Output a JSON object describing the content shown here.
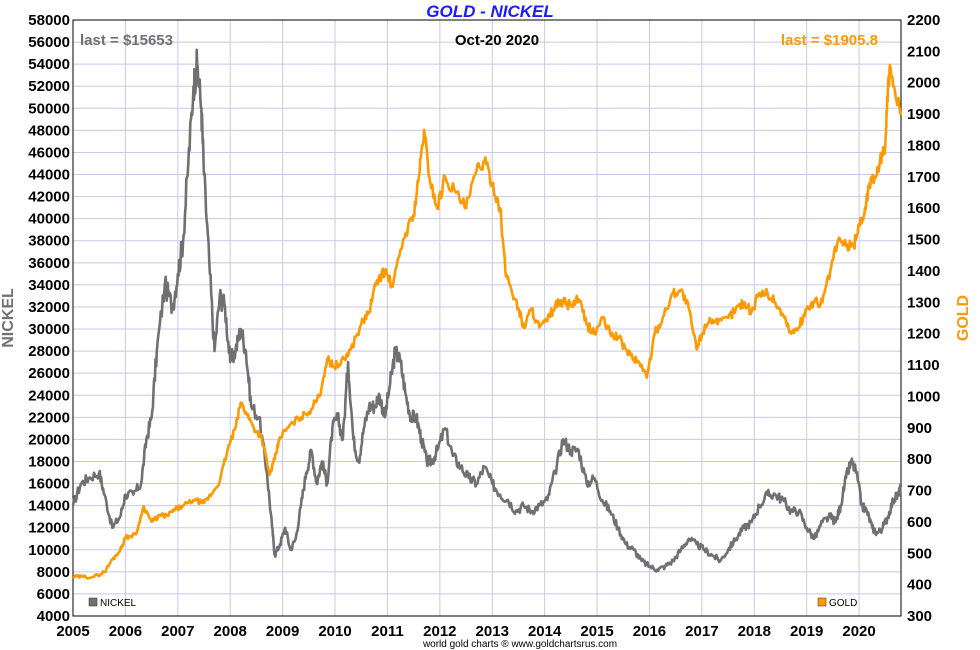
{
  "chart_data": {
    "type": "line",
    "title": "GOLD - NICKEL",
    "date_label": "Oct-20  2020",
    "footer": "world gold charts ® www.goldchartsrus.com",
    "left_axis": {
      "label": "NICKEL",
      "ylim": [
        4000,
        58000
      ],
      "ticks": [
        "4000",
        "6000",
        "8000",
        "10000",
        "12000",
        "14000",
        "16000",
        "18000",
        "20000",
        "22000",
        "24000",
        "26000",
        "28000",
        "30000",
        "32000",
        "34000",
        "36000",
        "38000",
        "40000",
        "42000",
        "44000",
        "46000",
        "48000",
        "50000",
        "52000",
        "54000",
        "56000",
        "58000"
      ]
    },
    "right_axis": {
      "label": "GOLD",
      "ylim": [
        300,
        2200
      ],
      "ticks": [
        "300",
        "400",
        "500",
        "600",
        "700",
        "800",
        "900",
        "1000",
        "1100",
        "1200",
        "1300",
        "1400",
        "1500",
        "1600",
        "1700",
        "1800",
        "1900",
        "2000",
        "2100",
        "2200"
      ]
    },
    "x_axis": {
      "xlim": [
        2005,
        2020.8
      ],
      "ticks": [
        "2005",
        "2006",
        "2007",
        "2008",
        "2009",
        "2010",
        "2011",
        "2012",
        "2013",
        "2014",
        "2015",
        "2016",
        "2017",
        "2018",
        "2019",
        "2020"
      ]
    },
    "grid": true,
    "series": [
      {
        "name": "NICKEL",
        "axis": "left",
        "color": "#707070",
        "last_label": "last = $15653",
        "x": [
          2005.0,
          2005.15,
          2005.3,
          2005.5,
          2005.6,
          2005.75,
          2005.9,
          2006.0,
          2006.15,
          2006.3,
          2006.4,
          2006.5,
          2006.6,
          2006.75,
          2006.9,
          2007.0,
          2007.1,
          2007.2,
          2007.3,
          2007.37,
          2007.45,
          2007.5,
          2007.6,
          2007.7,
          2007.8,
          2007.9,
          2008.0,
          2008.1,
          2008.2,
          2008.3,
          2008.4,
          2008.55,
          2008.7,
          2008.8,
          2008.85,
          2008.95,
          2009.05,
          2009.15,
          2009.25,
          2009.35,
          2009.45,
          2009.55,
          2009.65,
          2009.75,
          2009.85,
          2009.95,
          2010.05,
          2010.15,
          2010.25,
          2010.35,
          2010.45,
          2010.55,
          2010.65,
          2010.75,
          2010.85,
          2010.95,
          2011.05,
          2011.15,
          2011.25,
          2011.35,
          2011.45,
          2011.55,
          2011.65,
          2011.75,
          2011.85,
          2011.95,
          2012.1,
          2012.25,
          2012.4,
          2012.55,
          2012.7,
          2012.85,
          2013.0,
          2013.15,
          2013.3,
          2013.45,
          2013.6,
          2013.75,
          2013.9,
          2014.05,
          2014.2,
          2014.35,
          2014.5,
          2014.65,
          2014.8,
          2014.95,
          2015.1,
          2015.25,
          2015.4,
          2015.55,
          2015.7,
          2015.85,
          2016.0,
          2016.15,
          2016.3,
          2016.45,
          2016.6,
          2016.75,
          2016.9,
          2017.05,
          2017.2,
          2017.35,
          2017.5,
          2017.65,
          2017.8,
          2017.95,
          2018.1,
          2018.25,
          2018.4,
          2018.55,
          2018.7,
          2018.85,
          2019.0,
          2019.15,
          2019.3,
          2019.45,
          2019.55,
          2019.65,
          2019.75,
          2019.85,
          2019.95,
          2020.05,
          2020.15,
          2020.25,
          2020.35,
          2020.45,
          2020.55,
          2020.65,
          2020.75,
          2020.8
        ],
        "values": [
          14000,
          16000,
          16500,
          17000,
          15000,
          12000,
          13000,
          15000,
          15000,
          16000,
          20000,
          22000,
          28000,
          34000,
          32000,
          35000,
          38000,
          45000,
          52000,
          54000,
          50000,
          44000,
          36000,
          28000,
          33000,
          32000,
          27000,
          28000,
          30000,
          28000,
          23000,
          22000,
          17000,
          12000,
          9500,
          10500,
          12000,
          10000,
          11000,
          14000,
          17000,
          19000,
          16000,
          18000,
          16000,
          21000,
          22000,
          20000,
          27000,
          20000,
          18000,
          21000,
          23000,
          23000,
          24000,
          22000,
          25000,
          28000,
          27000,
          24000,
          22000,
          22000,
          20000,
          18000,
          18000,
          19000,
          21000,
          18500,
          17500,
          16500,
          16000,
          17500,
          16000,
          15000,
          14500,
          13500,
          14000,
          13500,
          14000,
          14500,
          17000,
          20000,
          19000,
          19000,
          16000,
          16500,
          14500,
          13500,
          12000,
          10500,
          10000,
          9000,
          8500,
          8200,
          8500,
          9000,
          10000,
          11000,
          10500,
          10000,
          9500,
          9000,
          10000,
          11000,
          12000,
          12500,
          14000,
          15000,
          15000,
          14500,
          13500,
          13500,
          12000,
          11000,
          12500,
          13000,
          12500,
          14000,
          16500,
          18000,
          17000,
          14000,
          13500,
          12000,
          11500,
          12000,
          13000,
          14500,
          15000,
          15653
        ]
      },
      {
        "name": "GOLD",
        "axis": "right",
        "color": "#ff9900",
        "last_label": "last = $1905.8",
        "x": [
          2005.0,
          2005.2,
          2005.4,
          2005.6,
          2005.75,
          2005.9,
          2006.0,
          2006.2,
          2006.35,
          2006.5,
          2006.65,
          2006.8,
          2006.95,
          2007.1,
          2007.3,
          2007.5,
          2007.65,
          2007.8,
          2007.95,
          2008.1,
          2008.2,
          2008.3,
          2008.45,
          2008.6,
          2008.75,
          2008.85,
          2008.95,
          2009.1,
          2009.3,
          2009.5,
          2009.7,
          2009.85,
          2009.95,
          2010.1,
          2010.3,
          2010.5,
          2010.65,
          2010.8,
          2010.95,
          2011.1,
          2011.3,
          2011.5,
          2011.6,
          2011.7,
          2011.8,
          2011.95,
          2012.1,
          2012.3,
          2012.5,
          2012.7,
          2012.85,
          2013.0,
          2013.15,
          2013.25,
          2013.35,
          2013.5,
          2013.6,
          2013.75,
          2013.9,
          2014.05,
          2014.2,
          2014.35,
          2014.5,
          2014.65,
          2014.8,
          2014.95,
          2015.1,
          2015.25,
          2015.4,
          2015.55,
          2015.7,
          2015.85,
          2015.95,
          2016.1,
          2016.25,
          2016.45,
          2016.6,
          2016.75,
          2016.9,
          2017.0,
          2017.15,
          2017.3,
          2017.5,
          2017.65,
          2017.8,
          2017.95,
          2018.1,
          2018.25,
          2018.4,
          2018.55,
          2018.7,
          2018.85,
          2019.0,
          2019.15,
          2019.3,
          2019.45,
          2019.6,
          2019.75,
          2019.9,
          2020.0,
          2020.1,
          2020.2,
          2020.3,
          2020.4,
          2020.5,
          2020.55,
          2020.6,
          2020.7,
          2020.8
        ],
        "values": [
          425,
          425,
          425,
          440,
          480,
          510,
          550,
          560,
          650,
          600,
          620,
          620,
          640,
          650,
          670,
          660,
          690,
          730,
          830,
          900,
          980,
          950,
          900,
          870,
          750,
          800,
          870,
          900,
          930,
          950,
          1000,
          1120,
          1100,
          1100,
          1150,
          1230,
          1270,
          1370,
          1400,
          1350,
          1500,
          1580,
          1700,
          1850,
          1700,
          1600,
          1700,
          1650,
          1600,
          1720,
          1750,
          1680,
          1600,
          1400,
          1350,
          1280,
          1220,
          1280,
          1220,
          1240,
          1290,
          1300,
          1290,
          1310,
          1230,
          1200,
          1250,
          1200,
          1190,
          1150,
          1120,
          1100,
          1060,
          1200,
          1250,
          1330,
          1340,
          1280,
          1150,
          1200,
          1250,
          1230,
          1250,
          1280,
          1300,
          1270,
          1330,
          1330,
          1300,
          1260,
          1200,
          1220,
          1280,
          1300,
          1300,
          1400,
          1500,
          1480,
          1480,
          1550,
          1580,
          1680,
          1700,
          1750,
          1800,
          1980,
          2050,
          1950,
          1905.8
        ]
      }
    ]
  }
}
